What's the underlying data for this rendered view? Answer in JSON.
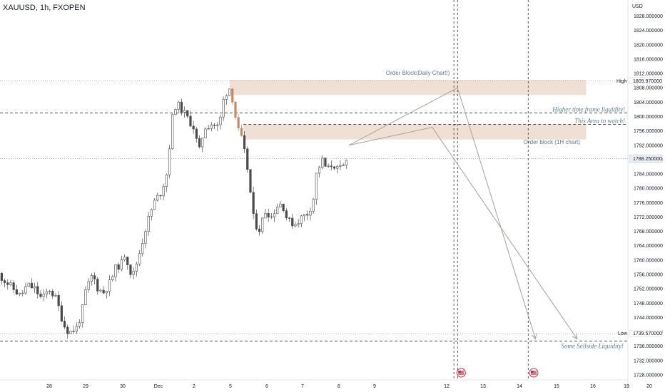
{
  "title": "XAUUSD, 1h, FXOPEN",
  "currency": "USD",
  "chart_data": {
    "type": "candlestick",
    "symbol": "XAUUSD",
    "timeframe": "1h",
    "source": "FXOPEN",
    "ylim": [
      1725,
      1832
    ],
    "y_ticks": [
      1728,
      1732,
      1736,
      1740,
      1744,
      1748,
      1752,
      1756,
      1760,
      1764,
      1768,
      1772,
      1776,
      1780,
      1784,
      1788,
      1792,
      1796,
      1800,
      1804,
      1808,
      1812,
      1816,
      1820,
      1824,
      1828
    ],
    "y_tick_labels": [
      "1728.000000",
      "1732.000000",
      "1736.000000",
      "1740.000000",
      "1744.000000",
      "1748.000000",
      "1752.000000",
      "1756.000000",
      "1760.000000",
      "1764.000000",
      "1768.000000",
      "1772.000000",
      "1776.000000",
      "1780.000000",
      "1784.000000",
      "1788.000000",
      "1792.000000",
      "1796.000000",
      "1800.000000",
      "1804.000000",
      "1808.000000",
      "1812.000000",
      "1816.000000",
      "1820.000000",
      "1824.000000",
      "1828.000000"
    ],
    "x_ticks": [
      {
        "x": 0,
        "label": "28"
      },
      {
        "x": 1,
        "label": "29"
      },
      {
        "x": 2,
        "label": "30"
      },
      {
        "x": 3,
        "label": "Dec"
      },
      {
        "x": 4,
        "label": "2"
      },
      {
        "x": 5,
        "label": "5"
      },
      {
        "x": 6,
        "label": "6"
      },
      {
        "x": 7,
        "label": "7"
      },
      {
        "x": 8,
        "label": "8"
      },
      {
        "x": 9,
        "label": "9"
      },
      {
        "x": 10,
        "label": "12"
      },
      {
        "x": 11,
        "label": "13"
      },
      {
        "x": 12,
        "label": "14"
      },
      {
        "x": 13,
        "label": "15"
      },
      {
        "x": 14,
        "label": "16"
      },
      {
        "x": 15,
        "label": "19"
      },
      {
        "x": 16,
        "label": "20"
      }
    ],
    "price_path": [
      [
        -1.4,
        1756
      ],
      [
        -1.2,
        1754
      ],
      [
        -1.0,
        1752
      ],
      [
        -0.8,
        1750
      ],
      [
        -0.6,
        1753
      ],
      [
        -0.4,
        1752
      ],
      [
        -0.2,
        1749
      ],
      [
        0.0,
        1752
      ],
      [
        0.2,
        1749
      ],
      [
        0.4,
        1742
      ],
      [
        0.55,
        1739.8
      ],
      [
        0.75,
        1741
      ],
      [
        0.9,
        1745
      ],
      [
        1.0,
        1751
      ],
      [
        1.2,
        1756
      ],
      [
        1.35,
        1752
      ],
      [
        1.5,
        1751
      ],
      [
        1.7,
        1754
      ],
      [
        1.85,
        1758
      ],
      [
        2.0,
        1759
      ],
      [
        2.1,
        1762
      ],
      [
        2.3,
        1755
      ],
      [
        2.5,
        1762
      ],
      [
        2.7,
        1770
      ],
      [
        2.9,
        1776
      ],
      [
        3.1,
        1779
      ],
      [
        3.25,
        1784
      ],
      [
        3.45,
        1803
      ],
      [
        3.6,
        1803
      ],
      [
        3.8,
        1800
      ],
      [
        4.0,
        1797
      ],
      [
        4.15,
        1790
      ],
      [
        4.3,
        1797
      ],
      [
        4.5,
        1798
      ],
      [
        4.7,
        1797
      ],
      [
        4.85,
        1806
      ],
      [
        5.0,
        1808
      ],
      [
        5.1,
        1804
      ],
      [
        5.2,
        1797
      ],
      [
        5.35,
        1793
      ],
      [
        5.5,
        1785
      ],
      [
        5.65,
        1772
      ],
      [
        5.8,
        1768
      ],
      [
        6.0,
        1774
      ],
      [
        6.15,
        1772
      ],
      [
        6.3,
        1775
      ],
      [
        6.45,
        1776
      ],
      [
        6.6,
        1771
      ],
      [
        6.8,
        1770
      ],
      [
        7.0,
        1772
      ],
      [
        7.15,
        1773
      ],
      [
        7.3,
        1776
      ],
      [
        7.4,
        1784
      ],
      [
        7.55,
        1788
      ],
      [
        7.7,
        1785
      ],
      [
        7.85,
        1787
      ],
      [
        8.0,
        1785
      ],
      [
        8.15,
        1786
      ],
      [
        8.3,
        1789
      ]
    ],
    "current_price": 1788.25,
    "current_price_label": "1788.250000",
    "high": {
      "label": "High",
      "value": 1809.97,
      "value_label": "1809.970000"
    },
    "low": {
      "label": "Low",
      "value": 1739.57,
      "value_label": "1739.570000"
    },
    "zones": [
      {
        "name": "Order Block(Daily Chart!)",
        "x0": 5.0,
        "x1": 13.85,
        "y0": 1806.0,
        "y1": 1810.2,
        "color": "#e6cab8"
      },
      {
        "name": "Order block (1H chart)",
        "x0": 5.38,
        "x1": 13.85,
        "y0": 1793.6,
        "y1": 1797.8,
        "color": "#e6cab8"
      }
    ],
    "levels": [
      {
        "label": "Higher time frame liquidity!",
        "value": 1801.0
      },
      {
        "label": "This Area to watch!",
        "value": 1797.8
      },
      {
        "label": "Some Sellside Liquidity!",
        "value": 1737.4
      }
    ],
    "vertical_lines_x": [
      10.2,
      10.3,
      12.25
    ],
    "projections": [
      {
        "points": [
          [
            8.3,
            1792
          ],
          [
            10.3,
            1808
          ],
          [
            12.45,
            1738
          ]
        ]
      },
      {
        "points": [
          [
            8.3,
            1792
          ],
          [
            9.8,
            1797
          ],
          [
            13.6,
            1738
          ]
        ]
      }
    ],
    "event_markers_x": [
      10.4,
      12.4
    ],
    "annotations": [
      {
        "text": "Order Block(Daily Chart!)",
        "x": 9.6,
        "y": 1811.6
      },
      {
        "text": "Order block (1H chart)",
        "x": 12.9,
        "y": 1792.3
      }
    ]
  }
}
